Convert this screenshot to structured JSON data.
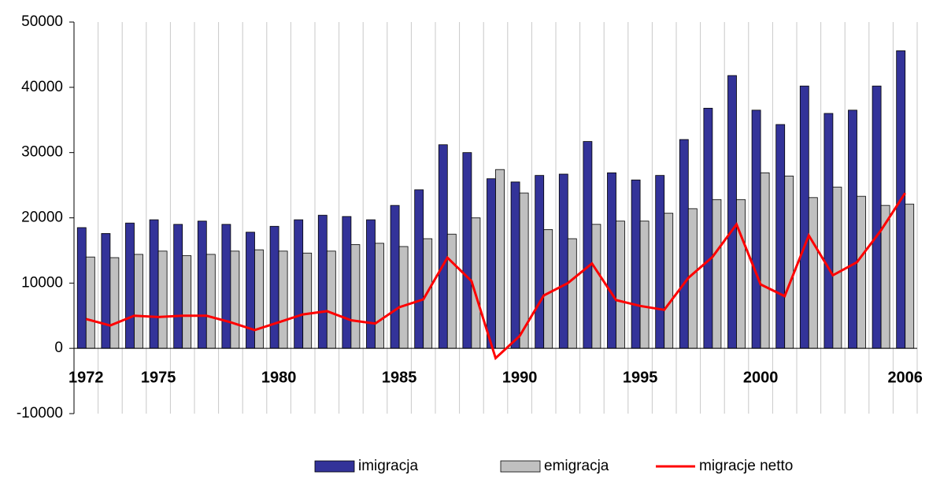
{
  "chart_data": {
    "type": "bar",
    "categories": [
      "1972",
      null,
      null,
      "1975",
      null,
      null,
      null,
      null,
      "1980",
      null,
      null,
      null,
      null,
      "1985",
      null,
      null,
      null,
      null,
      "1990",
      null,
      null,
      null,
      null,
      "1995",
      null,
      null,
      null,
      null,
      "2000",
      null,
      null,
      null,
      null,
      null,
      "2006"
    ],
    "series": [
      {
        "name": "imigracja",
        "type": "bar",
        "color": "#333399",
        "values": [
          18500,
          17600,
          19200,
          19700,
          19000,
          19500,
          19000,
          17800,
          18700,
          19700,
          20400,
          20200,
          19700,
          21900,
          24300,
          31200,
          30000,
          26000,
          25500,
          26500,
          26700,
          31700,
          26900,
          25800,
          26500,
          32000,
          36800,
          41800,
          36500,
          34300,
          40200,
          36000,
          36500,
          40200,
          45600
        ]
      },
      {
        "name": "emigracja",
        "type": "bar",
        "color": "#c0c0c0",
        "values": [
          14000,
          13900,
          14400,
          14900,
          14200,
          14400,
          14900,
          15100,
          14900,
          14600,
          14900,
          15900,
          16100,
          15600,
          16800,
          17500,
          20000,
          27400,
          23800,
          18200,
          16800,
          19000,
          19500,
          19500,
          20700,
          21400,
          22800,
          22800,
          26900,
          26400,
          23100,
          24700,
          23300,
          21900,
          22100
        ]
      },
      {
        "name": "migracje netto",
        "type": "line",
        "color": "#ff0000",
        "values": [
          4500,
          3500,
          5000,
          4800,
          5000,
          5000,
          4000,
          2800,
          4000,
          5200,
          5700,
          4300,
          3800,
          6300,
          7500,
          13900,
          10300,
          -1500,
          1900,
          8100,
          10000,
          13000,
          7400,
          6500,
          5900,
          10800,
          14000,
          19000,
          9800,
          8000,
          17300,
          11200,
          13200,
          18100,
          23800
        ]
      }
    ],
    "ylim": [
      -10000,
      50000
    ],
    "yticks": [
      -10000,
      0,
      10000,
      20000,
      30000,
      40000,
      50000
    ],
    "grid": true,
    "legend": "bottom"
  }
}
